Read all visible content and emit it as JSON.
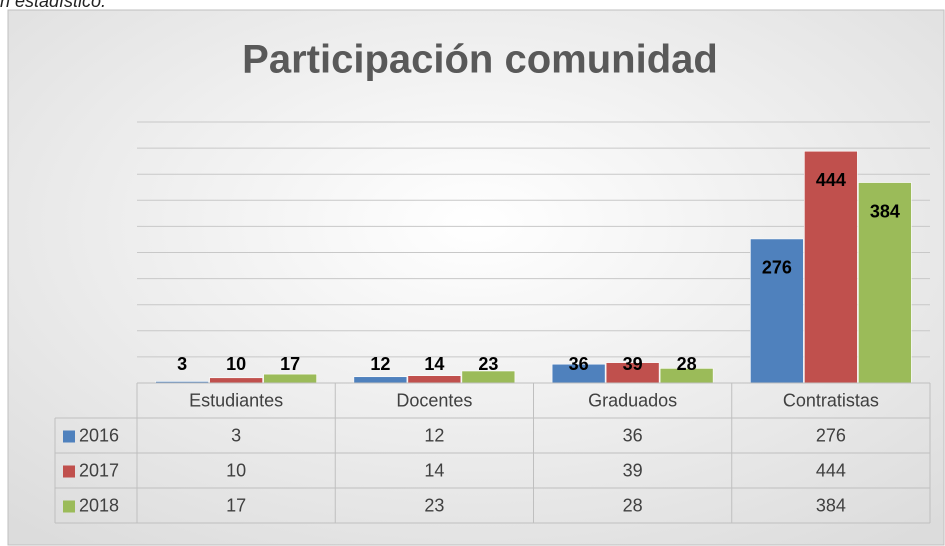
{
  "fragment": "n estadístico.",
  "chart_data": {
    "type": "bar",
    "title": "Participación comunidad",
    "categories": [
      "Estudiantes",
      "Docentes",
      "Graduados",
      "Contratistas"
    ],
    "series": [
      {
        "name": "2016",
        "color": "#4f81bd",
        "values": [
          3,
          12,
          36,
          276
        ]
      },
      {
        "name": "2017",
        "color": "#c0504d",
        "values": [
          10,
          14,
          39,
          444
        ]
      },
      {
        "name": "2018",
        "color": "#9bbb59",
        "values": [
          17,
          23,
          28,
          384
        ]
      }
    ],
    "ylim": [
      0,
      500
    ],
    "yticks": [
      0,
      50,
      100,
      150,
      200,
      250,
      300,
      350,
      400,
      450,
      500
    ],
    "grid": true
  }
}
